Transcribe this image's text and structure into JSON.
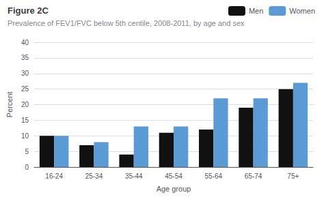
{
  "chart_data": {
    "type": "bar",
    "title": "Figure 2C",
    "subtitle": "Prevalence of FEV1/FVC below 5th centile, 2008-2011, by age and sex",
    "xlabel": "Age group",
    "ylabel": "Percent",
    "categories": [
      "16-24",
      "25-34",
      "35-44",
      "45-54",
      "55-64",
      "65-74",
      "75+"
    ],
    "series": [
      {
        "name": "Men",
        "color": "#111111",
        "values": [
          10,
          7,
          4,
          11,
          12,
          19,
          25
        ]
      },
      {
        "name": "Women",
        "color": "#5b9bd5",
        "values": [
          10,
          8,
          13,
          13,
          22,
          22,
          27
        ]
      }
    ],
    "ylim": [
      0,
      40
    ],
    "yticks": [
      0,
      5,
      10,
      15,
      20,
      25,
      30,
      35,
      40
    ],
    "grid": true,
    "legend": "top-right"
  }
}
